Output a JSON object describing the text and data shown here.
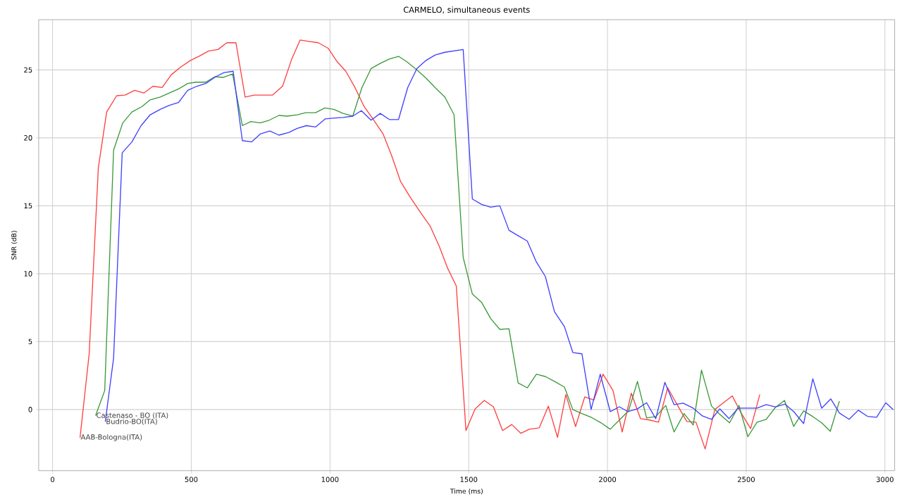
{
  "chart_data": {
    "type": "line",
    "title": "CARMELO, simultaneous events",
    "xlabel": "Time (ms)",
    "ylabel": "SNR (dB)",
    "xlim": [
      -50,
      3035
    ],
    "ylim": [
      -4.5,
      28.7
    ],
    "xticks": [
      0,
      500,
      1000,
      1500,
      2000,
      2500,
      3000
    ],
    "yticks": [
      0,
      5,
      10,
      15,
      20,
      25
    ],
    "grid": true,
    "marker": "none",
    "line_style": "solid",
    "series": [
      {
        "name": "AAB-Bologna(ITA)",
        "color": "#ff4040",
        "x": [
          99,
          132,
          165,
          195,
          231,
          261,
          296,
          329,
          362,
          395,
          428,
          461,
          497,
          527,
          563,
          596,
          628,
          661,
          694,
          727,
          760,
          793,
          829,
          862,
          892,
          925,
          958,
          993,
          1026,
          1057,
          1090,
          1123,
          1158,
          1191,
          1222,
          1254,
          1287,
          1323,
          1361,
          1394,
          1424,
          1455,
          1490,
          1523,
          1556,
          1589,
          1622,
          1655,
          1688,
          1718,
          1754,
          1787,
          1820,
          1850,
          1885,
          1918,
          1951,
          1984,
          2020,
          2053,
          2086,
          2119,
          2152,
          2184,
          2217,
          2250,
          2286,
          2319,
          2352,
          2387,
          2418,
          2450,
          2483,
          2516,
          2549
        ],
        "values": [
          -2.07,
          4.1,
          17.8,
          21.9,
          23.1,
          23.15,
          23.5,
          23.3,
          23.8,
          23.7,
          24.65,
          25.2,
          25.7,
          26.0,
          26.4,
          26.5,
          27.0,
          27.0,
          23.0,
          23.15,
          23.15,
          23.15,
          23.8,
          25.8,
          27.2,
          27.1,
          27.0,
          26.6,
          25.6,
          24.9,
          23.7,
          22.3,
          21.3,
          20.3,
          18.7,
          16.8,
          15.7,
          14.6,
          13.5,
          12.0,
          10.4,
          9.1,
          -1.55,
          0.05,
          0.67,
          0.2,
          -1.55,
          -1.1,
          -1.75,
          -1.45,
          -1.35,
          0.25,
          -2.05,
          1.1,
          -1.25,
          0.93,
          0.7,
          2.6,
          1.4,
          -1.65,
          1.2,
          -0.67,
          -0.77,
          -0.93,
          1.6,
          0.4,
          -0.88,
          -0.93,
          -2.9,
          0,
          0.5,
          1.0,
          -0.3,
          -1.4,
          1.1
        ]
      },
      {
        "name": "Castenaso - BO (ITA)",
        "color": "#3a9a3a",
        "x": [
          155,
          188,
          220,
          253,
          286,
          322,
          352,
          388,
          421,
          454,
          487,
          517,
          552,
          585,
          616,
          649,
          684,
          715,
          748,
          781,
          816,
          846,
          882,
          912,
          948,
          981,
          1014,
          1047,
          1082,
          1115,
          1148,
          1183,
          1214,
          1247,
          1277,
          1313,
          1346,
          1379,
          1414,
          1447,
          1480,
          1513,
          1546,
          1579,
          1612,
          1645,
          1678,
          1711,
          1744,
          1776,
          1809,
          1845,
          1875,
          1908,
          1944,
          1977,
          2010,
          2043,
          2076,
          2108,
          2141,
          2174,
          2210,
          2240,
          2276,
          2309,
          2339,
          2375,
          2405,
          2440,
          2474,
          2506,
          2539,
          2572,
          2605,
          2638,
          2671,
          2707,
          2740,
          2772,
          2803,
          2836
        ],
        "values": [
          -0.45,
          1.4,
          19.1,
          21.1,
          21.9,
          22.3,
          22.8,
          23.0,
          23.3,
          23.6,
          24.0,
          24.1,
          24.1,
          24.5,
          24.45,
          24.7,
          20.9,
          21.2,
          21.1,
          21.3,
          21.65,
          21.6,
          21.7,
          21.85,
          21.85,
          22.2,
          22.1,
          21.8,
          21.6,
          23.7,
          25.1,
          25.5,
          25.8,
          26.0,
          25.6,
          25.0,
          24.4,
          23.7,
          23.0,
          21.7,
          11.2,
          8.5,
          7.9,
          6.7,
          5.9,
          5.95,
          1.96,
          1.6,
          2.6,
          2.43,
          2.07,
          1.65,
          0,
          -0.3,
          -0.6,
          -0.98,
          -1.45,
          -0.77,
          -0.1,
          2.07,
          -0.62,
          -0.52,
          0.3,
          -1.65,
          -0.3,
          -1.14,
          2.9,
          0.26,
          -0.36,
          -0.98,
          0.3,
          -2.0,
          -0.93,
          -0.72,
          0.15,
          0.67,
          -1.24,
          -0.1,
          -0.52,
          -0.98,
          -1.6,
          0.62
        ]
      },
      {
        "name": "Budrio-BO(ITA)",
        "color": "#4040ff",
        "x": [
          190,
          220,
          251,
          286,
          319,
          352,
          388,
          421,
          454,
          487,
          520,
          552,
          588,
          618,
          651,
          684,
          717,
          750,
          783,
          816,
          852,
          882,
          915,
          948,
          983,
          1011,
          1047,
          1082,
          1113,
          1148,
          1181,
          1214,
          1247,
          1280,
          1313,
          1346,
          1379,
          1414,
          1447,
          1480,
          1513,
          1546,
          1579,
          1612,
          1645,
          1678,
          1711,
          1744,
          1776,
          1809,
          1845,
          1875,
          1908,
          1941,
          1974,
          2010,
          2043,
          2073,
          2108,
          2141,
          2174,
          2207,
          2240,
          2273,
          2309,
          2342,
          2375,
          2405,
          2438,
          2471,
          2504,
          2539,
          2572,
          2605,
          2640,
          2671,
          2707,
          2740,
          2772,
          2805,
          2836,
          2871,
          2904,
          2937,
          2970,
          3003,
          3030
        ],
        "values": [
          -0.9,
          3.8,
          18.9,
          19.7,
          20.9,
          21.7,
          22.1,
          22.4,
          22.6,
          23.5,
          23.8,
          24.0,
          24.5,
          24.8,
          24.9,
          19.8,
          19.7,
          20.3,
          20.5,
          20.2,
          20.4,
          20.7,
          20.9,
          20.8,
          21.4,
          21.45,
          21.5,
          21.6,
          22.0,
          21.3,
          21.8,
          21.35,
          21.35,
          23.7,
          25.1,
          25.7,
          26.1,
          26.3,
          26.4,
          26.5,
          15.5,
          15.1,
          14.9,
          15.0,
          13.2,
          12.8,
          12.4,
          10.85,
          9.8,
          7.2,
          6.1,
          4.2,
          4.1,
          0,
          2.6,
          -0.15,
          0.2,
          -0.15,
          0.05,
          0.5,
          -0.67,
          2.0,
          0.36,
          0.47,
          0.1,
          -0.47,
          -0.72,
          0.05,
          -0.67,
          0.1,
          0.1,
          0.1,
          0.36,
          0.2,
          0.4,
          -0.15,
          -1.03,
          2.27,
          0.1,
          0.78,
          -0.26,
          -0.72,
          -0.05,
          -0.5,
          -0.57,
          0.5,
          0
        ]
      }
    ]
  }
}
